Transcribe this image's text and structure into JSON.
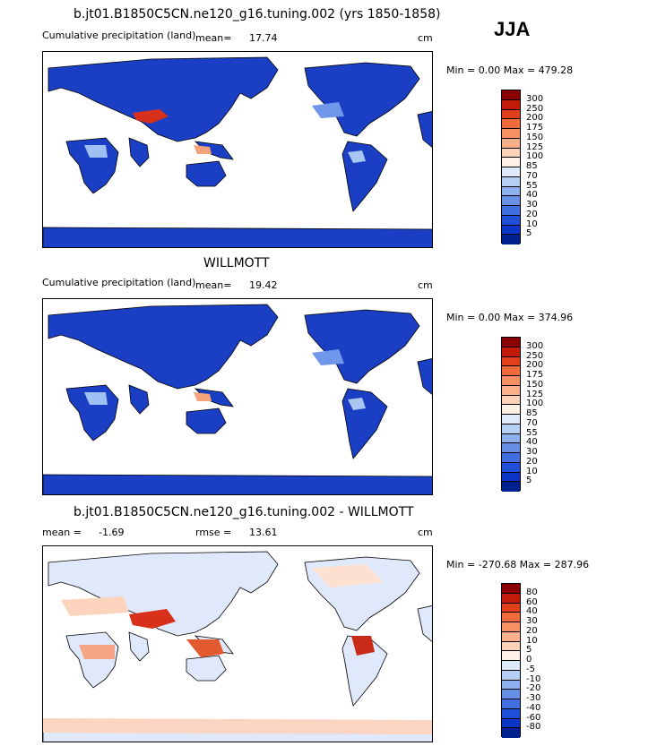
{
  "season": "JJA",
  "land_color": "#1a3fc4",
  "panels": [
    {
      "title": "b.jt01.B1850C5CN.ne120_g16.tuning.002 (yrs 1850-1858)",
      "variable": "Cumulative precipitation (land)",
      "mean_label": "mean=",
      "mean_value": "17.74",
      "units": "cm",
      "minmax": "Min =   0.00 Max = 479.28"
    },
    {
      "title": "WILLMOTT",
      "variable": "Cumulative precipitation (land)",
      "mean_label": "mean=",
      "mean_value": "19.42",
      "units": "cm",
      "minmax": "Min =   0.00 Max = 374.96"
    },
    {
      "title": "b.jt01.B1850C5CN.ne120_g16.tuning.002 - WILLMOTT",
      "mean_label": "mean =",
      "mean_value": "-1.69",
      "rmse_label": "rmse =",
      "rmse_value": "13.61",
      "units": "cm",
      "minmax": "Min = -270.68 Max = 287.96"
    }
  ],
  "colorbar_abs": {
    "labels": [
      "300",
      "250",
      "200",
      "175",
      "150",
      "125",
      "100",
      "85",
      "70",
      "55",
      "40",
      "30",
      "20",
      "10",
      "5"
    ],
    "colors": [
      "#8b0000",
      "#c41a0a",
      "#e2401a",
      "#f06a3a",
      "#f79062",
      "#fbb08a",
      "#fdd2b6",
      "#fff0e6",
      "#deeafa",
      "#b6cff5",
      "#8db0ef",
      "#6690e6",
      "#4070e0",
      "#1f4fd8",
      "#0a35c6",
      "#00208f"
    ]
  },
  "colorbar_diff": {
    "labels": [
      "80",
      "60",
      "40",
      "30",
      "20",
      "10",
      "5",
      "0",
      "-5",
      "-10",
      "-20",
      "-30",
      "-40",
      "-60",
      "-80"
    ],
    "colors": [
      "#8b0000",
      "#c41a0a",
      "#e2401a",
      "#f06a3a",
      "#f79062",
      "#fbb08a",
      "#fdd2b6",
      "#fff0e6",
      "#deeafa",
      "#b6cff5",
      "#8db0ef",
      "#6690e6",
      "#4070e0",
      "#1f4fd8",
      "#0a35c6",
      "#00208f"
    ]
  }
}
